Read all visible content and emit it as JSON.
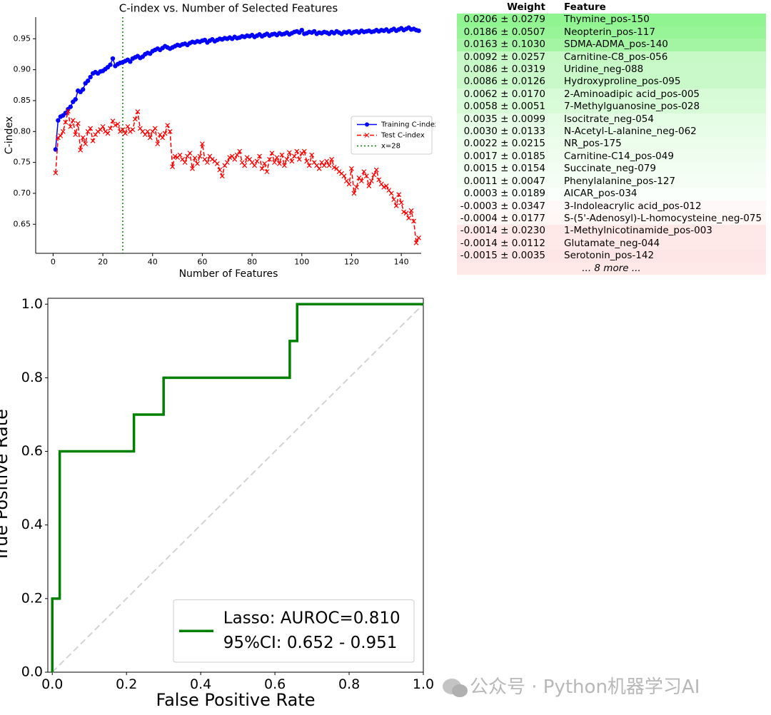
{
  "chart_data": [
    {
      "type": "line",
      "title": "C-index vs. Number of Selected Features",
      "xlabel": "Number of Features",
      "ylabel": "C-index",
      "x": [
        1,
        2,
        3,
        4,
        5,
        6,
        7,
        8,
        9,
        10,
        11,
        12,
        13,
        14,
        15,
        16,
        17,
        18,
        19,
        20,
        21,
        22,
        23,
        24,
        25,
        26,
        27,
        28,
        29,
        30,
        31,
        32,
        33,
        34,
        35,
        36,
        37,
        38,
        39,
        40,
        41,
        42,
        43,
        44,
        45,
        46,
        47,
        48,
        49,
        50,
        51,
        52,
        53,
        54,
        55,
        56,
        57,
        58,
        59,
        60,
        61,
        62,
        63,
        64,
        65,
        66,
        67,
        68,
        69,
        70,
        71,
        72,
        73,
        74,
        75,
        76,
        77,
        78,
        79,
        80,
        81,
        82,
        83,
        84,
        85,
        86,
        87,
        88,
        89,
        90,
        91,
        92,
        93,
        94,
        95,
        96,
        97,
        98,
        99,
        100,
        101,
        102,
        103,
        104,
        105,
        106,
        107,
        108,
        109,
        110,
        111,
        112,
        113,
        114,
        115,
        116,
        117,
        118,
        119,
        120,
        121,
        122,
        123,
        124,
        125,
        126,
        127,
        128,
        129,
        130,
        131,
        132,
        133,
        134,
        135,
        136,
        137,
        138,
        139,
        140,
        141,
        142,
        143,
        144,
        145,
        146,
        147
      ],
      "series": [
        {
          "name": "Training C-index",
          "color": "#0000ff",
          "marker": "circle",
          "linestyle": "solid",
          "values": [
            0.771,
            0.818,
            0.824,
            0.826,
            0.83,
            0.836,
            0.84,
            0.848,
            0.852,
            0.866,
            0.864,
            0.868,
            0.878,
            0.882,
            0.888,
            0.894,
            0.896,
            0.894,
            0.897,
            0.898,
            0.901,
            0.904,
            0.908,
            0.918,
            0.906,
            0.909,
            0.911,
            0.912,
            0.914,
            0.916,
            0.913,
            0.918,
            0.92,
            0.922,
            0.919,
            0.921,
            0.925,
            0.927,
            0.926,
            0.93,
            0.932,
            0.934,
            0.932,
            0.935,
            0.938,
            0.936,
            0.934,
            0.936,
            0.938,
            0.94,
            0.939,
            0.941,
            0.942,
            0.94,
            0.943,
            0.945,
            0.944,
            0.946,
            0.945,
            0.947,
            0.948,
            0.944,
            0.947,
            0.949,
            0.946,
            0.948,
            0.95,
            0.949,
            0.951,
            0.95,
            0.952,
            0.95,
            0.953,
            0.951,
            0.952,
            0.954,
            0.953,
            0.955,
            0.954,
            0.956,
            0.953,
            0.955,
            0.957,
            0.954,
            0.956,
            0.958,
            0.955,
            0.957,
            0.958,
            0.956,
            0.959,
            0.957,
            0.958,
            0.96,
            0.957,
            0.959,
            0.961,
            0.962,
            0.96,
            0.964,
            0.958,
            0.959,
            0.961,
            0.96,
            0.962,
            0.958,
            0.96,
            0.959,
            0.961,
            0.96,
            0.958,
            0.961,
            0.959,
            0.962,
            0.96,
            0.958,
            0.961,
            0.96,
            0.962,
            0.959,
            0.961,
            0.962,
            0.96,
            0.963,
            0.961,
            0.962,
            0.963,
            0.961,
            0.962,
            0.964,
            0.962,
            0.964,
            0.963,
            0.965,
            0.962,
            0.964,
            0.966,
            0.963,
            0.965,
            0.967,
            0.964,
            0.966,
            0.968,
            0.965,
            0.966,
            0.964,
            0.963
          ]
        },
        {
          "name": "Test C-index",
          "color": "#ff0000",
          "marker": "x",
          "linestyle": "dashed",
          "values": [
            0.733,
            0.79,
            0.793,
            0.8,
            0.815,
            0.833,
            0.808,
            0.818,
            0.795,
            0.813,
            0.77,
            0.79,
            0.78,
            0.8,
            0.805,
            0.785,
            0.795,
            0.8,
            0.803,
            0.808,
            0.8,
            0.797,
            0.805,
            0.817,
            0.81,
            0.812,
            0.8,
            0.803,
            0.797,
            0.808,
            0.8,
            0.803,
            0.82,
            0.832,
            0.805,
            0.8,
            0.795,
            0.8,
            0.79,
            0.8,
            0.805,
            0.78,
            0.795,
            0.79,
            0.797,
            0.81,
            0.8,
            0.743,
            0.76,
            0.758,
            0.762,
            0.755,
            0.75,
            0.76,
            0.765,
            0.74,
            0.757,
            0.748,
            0.76,
            0.78,
            0.755,
            0.75,
            0.76,
            0.755,
            0.752,
            0.748,
            0.738,
            0.728,
            0.745,
            0.75,
            0.758,
            0.76,
            0.755,
            0.762,
            0.768,
            0.75,
            0.745,
            0.758,
            0.755,
            0.75,
            0.745,
            0.752,
            0.76,
            0.74,
            0.748,
            0.735,
            0.755,
            0.765,
            0.75,
            0.758,
            0.748,
            0.762,
            0.745,
            0.755,
            0.766,
            0.752,
            0.76,
            0.768,
            0.755,
            0.765,
            0.768,
            0.752,
            0.745,
            0.762,
            0.75,
            0.745,
            0.74,
            0.75,
            0.745,
            0.752,
            0.745,
            0.755,
            0.742,
            0.74,
            0.735,
            0.732,
            0.728,
            0.72,
            0.715,
            0.74,
            0.7,
            0.71,
            0.725,
            0.72,
            0.735,
            0.728,
            0.712,
            0.72,
            0.73,
            0.738,
            0.722,
            0.715,
            0.71,
            0.712,
            0.705,
            0.7,
            0.69,
            0.68,
            0.698,
            0.685,
            0.67,
            0.668,
            0.66,
            0.672,
            0.655,
            0.62,
            0.628
          ]
        }
      ],
      "vlines": [
        {
          "name": "x=28",
          "value": 28,
          "color": "#008000",
          "linestyle": "dotted"
        }
      ],
      "xlim": [
        -7,
        148
      ],
      "ylim": [
        0.603,
        0.985
      ],
      "xticks": [
        0,
        20,
        40,
        60,
        80,
        100,
        120,
        140
      ],
      "yticks": [
        0.65,
        {
          "value": 0.7,
          "label": "0.70"
        },
        0.75,
        {
          "value": 0.8,
          "label": "0.80"
        },
        0.85,
        {
          "value": 0.9,
          "label": "0.90"
        },
        0.95
      ],
      "legend": "center right",
      "grid": false
    },
    {
      "type": "step",
      "xlabel": "False Positive Rate",
      "ylabel": "True Positive Rate",
      "x": [
        0,
        0,
        0.02,
        0.02,
        0.22,
        0.22,
        0.3,
        0.3,
        0.64,
        0.64,
        0.66,
        0.66,
        1
      ],
      "series": [
        {
          "name": "Lasso: AUROC=0.810",
          "note": "95%CI: 0.652 - 0.951",
          "color": "#008000",
          "linestyle": "solid",
          "values": [
            0,
            0.2,
            0.2,
            0.6,
            0.6,
            0.7,
            0.7,
            0.8,
            0.8,
            0.9,
            0.9,
            1,
            1
          ]
        }
      ],
      "reference_line": {
        "color": "#d3d3d3",
        "linestyle": "dashed"
      },
      "xlim": [
        -0.012,
        1.0
      ],
      "ylim": [
        0,
        1.016
      ],
      "xticks": [
        {
          "value": 0,
          "label": "0.0"
        },
        0.2,
        0.4,
        0.6,
        0.8,
        {
          "value": 1,
          "label": "1.0"
        }
      ],
      "yticks": [
        {
          "value": 0,
          "label": "0.0"
        },
        0.2,
        0.4,
        0.6,
        0.8,
        {
          "value": 1,
          "label": "1.0"
        }
      ],
      "legend": "lower right",
      "grid": false
    }
  ],
  "table": {
    "columns": [
      "Weight",
      "Feature"
    ],
    "rows": [
      {
        "weight": "0.0206 ± 0.0279",
        "feature": "Thymine_pos-150",
        "color": "#90f590"
      },
      {
        "weight": "0.0186 ± 0.0507",
        "feature": "Neopterin_pos-117",
        "color": "#97f597"
      },
      {
        "weight": "0.0163 ± 0.1030",
        "feature": "SDMA-ADMA_pos-140",
        "color": "#a3f5a3"
      },
      {
        "weight": "0.0092 ± 0.0257",
        "feature": "Carnitine-C8_pos-056",
        "color": "#c6f9c6"
      },
      {
        "weight": "0.0086 ± 0.0319",
        "feature": "Uridine_neg-088",
        "color": "#c9f9c9"
      },
      {
        "weight": "0.0086 ± 0.0126",
        "feature": "Hydroxyproline_pos-095",
        "color": "#c9f9c9"
      },
      {
        "weight": "0.0062 ± 0.0170",
        "feature": "2-Aminoadipic acid_pos-005",
        "color": "#d6fbd6"
      },
      {
        "weight": "0.0058 ± 0.0051",
        "feature": "7-Methylguanosine_pos-028",
        "color": "#d8fbd8"
      },
      {
        "weight": "0.0035 ± 0.0099",
        "feature": "Isocitrate_neg-054",
        "color": "#e5fce5"
      },
      {
        "weight": "0.0030 ± 0.0133",
        "feature": "N-Acetyl-L-alanine_neg-062",
        "color": "#e8fde8"
      },
      {
        "weight": "0.0022 ± 0.0215",
        "feature": "NR_pos-175",
        "color": "#ecfdec"
      },
      {
        "weight": "0.0017 ± 0.0185",
        "feature": "Carnitine-C14_pos-049",
        "color": "#effdef"
      },
      {
        "weight": "0.0015 ± 0.0154",
        "feature": "Succinate_neg-079",
        "color": "#f1fef1"
      },
      {
        "weight": "0.0011 ± 0.0047",
        "feature": "Phenylalanine_pos-127",
        "color": "#f4fef4"
      },
      {
        "weight": "0.0003 ± 0.0189",
        "feature": "AICAR_pos-034",
        "color": "#fbfffb"
      },
      {
        "weight": "-0.0003 ± 0.0347",
        "feature": "3-Indoleacrylic acid_pos-012",
        "color": "#fff8f8"
      },
      {
        "weight": "-0.0004 ± 0.0177",
        "feature": "S-(5'-Adenosyl)-L-homocysteine_neg-075",
        "color": "#fff6f6"
      },
      {
        "weight": "-0.0014 ± 0.0230",
        "feature": "1-Methylnicotinamide_pos-003",
        "color": "#ffe8e8"
      },
      {
        "weight": "-0.0014 ± 0.0112",
        "feature": "Glutamate_neg-044",
        "color": "#ffe8e8"
      },
      {
        "weight": "-0.0015 ± 0.0035",
        "feature": "Serotonin_pos-142",
        "color": "#ffe6e6"
      }
    ],
    "footer": "... 8 more ..."
  },
  "watermark": "公众号 · Python机器学习AI"
}
